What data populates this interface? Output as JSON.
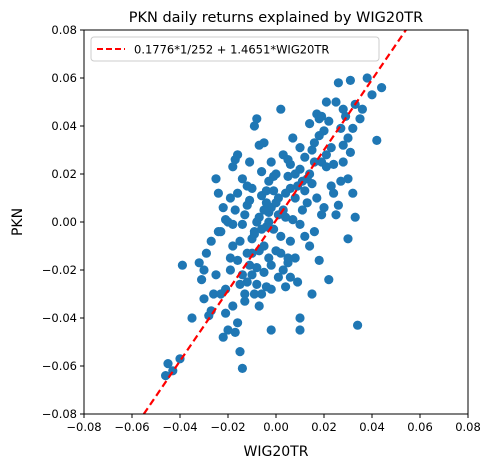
{
  "chart_data": {
    "type": "scatter",
    "title": "PKN daily returns explained by WIG20TR",
    "xlabel": "WIG20TR",
    "ylabel": "PKN",
    "xlim": [
      -0.08,
      0.08
    ],
    "ylim": [
      -0.08,
      0.08
    ],
    "xticks": [
      "−0.08",
      "−0.06",
      "−0.04",
      "−0.02",
      "0.00",
      "0.02",
      "0.04",
      "0.06",
      "0.08"
    ],
    "yticks": [
      "−0.08",
      "−0.06",
      "−0.04",
      "−0.02",
      "0.00",
      "0.02",
      "0.04",
      "0.06",
      "0.08"
    ],
    "grid": false,
    "legend_position": "top-left",
    "colors": {
      "points": "#1f77b4",
      "fit_line": "#ff0000"
    },
    "fit_line": {
      "label": "0.1776*1/252 + 1.4651*WIG20TR",
      "intercept": 0.000705,
      "slope": 1.4651,
      "style": "dashed"
    },
    "points": [
      [
        -0.046,
        -0.064
      ],
      [
        -0.045,
        -0.059
      ],
      [
        -0.043,
        -0.062
      ],
      [
        -0.04,
        -0.057
      ],
      [
        -0.039,
        -0.018
      ],
      [
        -0.035,
        -0.04
      ],
      [
        -0.032,
        -0.017
      ],
      [
        -0.031,
        -0.024
      ],
      [
        -0.03,
        -0.032
      ],
      [
        -0.03,
        -0.02
      ],
      [
        -0.029,
        -0.013
      ],
      [
        -0.028,
        -0.039
      ],
      [
        -0.027,
        -0.037
      ],
      [
        -0.026,
        -0.03
      ],
      [
        -0.025,
        -0.022
      ],
      [
        -0.024,
        -0.004
      ],
      [
        -0.023,
        -0.004
      ],
      [
        -0.022,
        -0.048
      ],
      [
        -0.021,
        -0.028
      ],
      [
        -0.02,
        -0.045
      ],
      [
        -0.019,
        -0.02
      ],
      [
        -0.018,
        -0.035
      ],
      [
        -0.017,
        -0.046
      ],
      [
        -0.016,
        -0.042
      ],
      [
        -0.015,
        -0.054
      ],
      [
        -0.014,
        -0.061
      ],
      [
        -0.013,
        -0.033
      ],
      [
        -0.012,
        -0.025
      ],
      [
        -0.011,
        -0.018
      ],
      [
        -0.01,
        -0.007
      ],
      [
        -0.022,
        0.006
      ],
      [
        -0.02,
        0.0
      ],
      [
        -0.019,
        0.01
      ],
      [
        -0.018,
        -0.001
      ],
      [
        -0.017,
        0.005
      ],
      [
        -0.016,
        0.012
      ],
      [
        -0.015,
        -0.008
      ],
      [
        -0.014,
        -0.001
      ],
      [
        -0.013,
        0.003
      ],
      [
        -0.012,
        0.007
      ],
      [
        -0.011,
        0.009
      ],
      [
        -0.01,
        0.014
      ],
      [
        -0.009,
        -0.004
      ],
      [
        -0.008,
        0.0
      ],
      [
        -0.007,
        0.002
      ],
      [
        -0.006,
        0.011
      ],
      [
        -0.005,
        -0.01
      ],
      [
        -0.004,
        -0.002
      ],
      [
        -0.003,
        0.004
      ],
      [
        -0.002,
        0.006
      ],
      [
        -0.018,
        0.023
      ],
      [
        -0.017,
        0.026
      ],
      [
        -0.016,
        0.028
      ],
      [
        -0.014,
        0.018
      ],
      [
        -0.012,
        0.015
      ],
      [
        -0.011,
        0.025
      ],
      [
        -0.009,
        0.04
      ],
      [
        -0.008,
        0.043
      ],
      [
        -0.007,
        0.032
      ],
      [
        -0.006,
        0.021
      ],
      [
        -0.005,
        0.033
      ],
      [
        -0.004,
        0.013
      ],
      [
        -0.003,
        0.017
      ],
      [
        -0.002,
        0.025
      ],
      [
        -0.001,
        0.019
      ],
      [
        0.0,
        0.008
      ],
      [
        0.001,
        0.003
      ],
      [
        0.002,
        0.047
      ],
      [
        0.003,
        0.005
      ],
      [
        0.004,
        0.012
      ],
      [
        0.005,
        0.019
      ],
      [
        0.006,
        0.024
      ],
      [
        0.007,
        0.001
      ],
      [
        0.008,
        0.01
      ],
      [
        0.009,
        0.015
      ],
      [
        0.01,
        0.022
      ],
      [
        0.011,
        0.005
      ],
      [
        0.012,
        0.013
      ],
      [
        0.013,
        0.018
      ],
      [
        0.014,
        0.02
      ],
      [
        0.015,
        0.03
      ],
      [
        0.016,
        0.033
      ],
      [
        0.017,
        0.045
      ],
      [
        0.018,
        0.043
      ],
      [
        0.019,
        0.025
      ],
      [
        0.02,
        0.038
      ],
      [
        0.021,
        0.05
      ],
      [
        0.022,
        0.042
      ],
      [
        0.023,
        0.015
      ],
      [
        0.024,
        0.012
      ],
      [
        0.025,
        0.003
      ],
      [
        0.026,
        0.007
      ],
      [
        0.027,
        0.039
      ],
      [
        0.028,
        0.032
      ],
      [
        0.029,
        0.044
      ],
      [
        0.03,
        0.018
      ],
      [
        0.031,
        0.059
      ],
      [
        0.032,
        0.012
      ],
      [
        0.033,
        0.002
      ],
      [
        0.034,
        -0.043
      ],
      [
        0.035,
        0.043
      ],
      [
        0.036,
        0.047
      ],
      [
        0.038,
        0.06
      ],
      [
        0.04,
        0.053
      ],
      [
        0.042,
        0.034
      ],
      [
        0.044,
        0.056
      ],
      [
        0.026,
        0.058
      ],
      [
        0.031,
        0.029
      ],
      [
        0.03,
        -0.007
      ],
      [
        0.022,
        -0.024
      ],
      [
        0.018,
        -0.016
      ],
      [
        0.016,
        -0.004
      ],
      [
        0.014,
        -0.01
      ],
      [
        0.012,
        -0.006
      ],
      [
        0.01,
        -0.001
      ],
      [
        0.008,
        -0.015
      ],
      [
        0.006,
        -0.008
      ],
      [
        0.005,
        -0.017
      ],
      [
        0.004,
        -0.027
      ],
      [
        0.003,
        -0.02
      ],
      [
        0.001,
        -0.023
      ],
      [
        0.0,
        -0.012
      ],
      [
        -0.001,
        -0.003
      ],
      [
        -0.002,
        -0.018
      ],
      [
        -0.003,
        -0.015
      ],
      [
        -0.004,
        -0.027
      ],
      [
        -0.005,
        -0.021
      ],
      [
        -0.006,
        -0.03
      ],
      [
        -0.007,
        -0.012
      ],
      [
        -0.008,
        -0.026
      ],
      [
        -0.009,
        -0.005
      ],
      [
        -0.01,
        -0.013
      ],
      [
        -0.002,
        -0.045
      ],
      [
        0.01,
        -0.045
      ],
      [
        0.01,
        -0.04
      ],
      [
        0.009,
        -0.025
      ],
      [
        0.015,
        -0.03
      ],
      [
        0.005,
        -0.015
      ],
      [
        -0.005,
        0.005
      ],
      [
        0.0,
        0.02
      ],
      [
        0.003,
        0.028
      ],
      [
        0.005,
        0.026
      ],
      [
        0.007,
        0.035
      ],
      [
        0.01,
        0.031
      ],
      [
        0.012,
        0.027
      ],
      [
        0.014,
        0.041
      ],
      [
        0.016,
        0.025
      ],
      [
        0.018,
        0.036
      ],
      [
        0.02,
        0.006
      ],
      [
        0.021,
        0.028
      ],
      [
        0.023,
        0.031
      ],
      [
        0.024,
        0.024
      ],
      [
        0.027,
        0.017
      ],
      [
        0.028,
        0.047
      ],
      [
        0.032,
        0.039
      ],
      [
        -0.025,
        0.018
      ],
      [
        -0.024,
        0.012
      ],
      [
        -0.021,
        0.001
      ],
      [
        -0.019,
        -0.015
      ],
      [
        -0.018,
        -0.01
      ],
      [
        -0.015,
        -0.026
      ],
      [
        -0.013,
        -0.03
      ],
      [
        -0.012,
        -0.013
      ],
      [
        -0.01,
        -0.022
      ],
      [
        -0.008,
        -0.019
      ],
      [
        -0.006,
        -0.003
      ],
      [
        -0.004,
        0.008
      ],
      [
        -0.003,
        0.0
      ],
      [
        -0.001,
        0.013
      ],
      [
        0.001,
        0.01
      ],
      [
        0.002,
        -0.006
      ],
      [
        0.004,
        0.002
      ],
      [
        0.006,
        0.014
      ],
      [
        0.008,
        0.02
      ],
      [
        0.011,
        0.017
      ],
      [
        0.013,
        0.008
      ],
      [
        0.015,
        0.016
      ],
      [
        0.017,
        0.01
      ],
      [
        0.019,
        0.003
      ],
      [
        0.021,
        0.023
      ],
      [
        0.025,
        0.05
      ],
      [
        0.028,
        0.025
      ],
      [
        0.033,
        0.049
      ],
      [
        0.03,
        0.035
      ],
      [
        0.019,
        0.044
      ],
      [
        -0.027,
        -0.008
      ],
      [
        -0.023,
        -0.03
      ],
      [
        -0.021,
        -0.038
      ],
      [
        -0.016,
        -0.016
      ],
      [
        -0.014,
        -0.022
      ],
      [
        -0.009,
        -0.03
      ],
      [
        -0.007,
        -0.035
      ],
      [
        -0.002,
        -0.028
      ],
      [
        0.002,
        -0.013
      ],
      [
        0.006,
        -0.023
      ]
    ]
  }
}
